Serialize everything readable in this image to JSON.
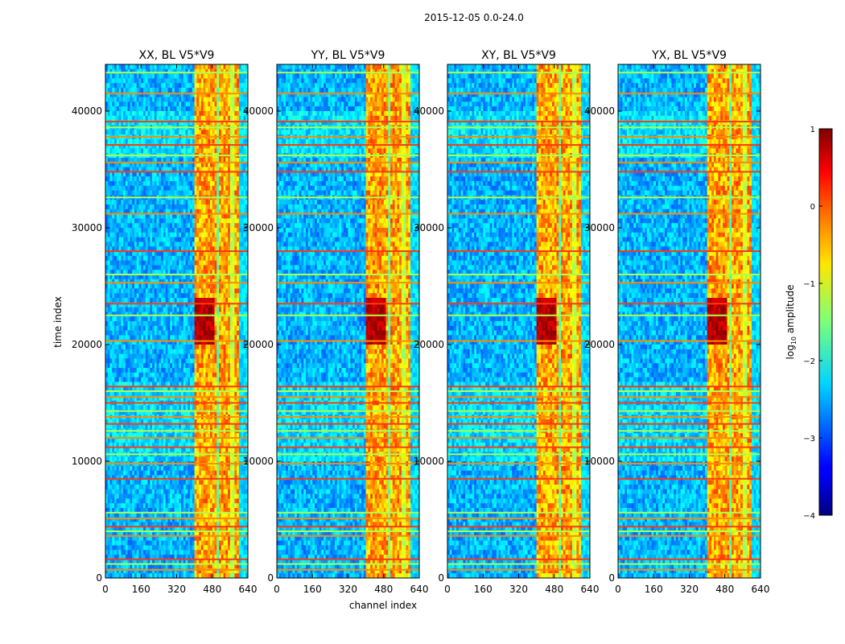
{
  "figure_title": "2015-12-05 0.0-24.0",
  "chart_data": {
    "type": "heatmap",
    "suptitle": "2015-12-05 0.0-24.0",
    "shared_ylabel": "time index",
    "shared_xlabel": "channel index",
    "xlim": [
      0,
      640
    ],
    "ylim": [
      0,
      44000
    ],
    "xticks": [
      0,
      160,
      320,
      480,
      640
    ],
    "yticks": [
      0,
      10000,
      20000,
      30000,
      40000
    ],
    "ytick_labels": [
      "0",
      "10000",
      "20000",
      "30000",
      "40000"
    ],
    "xtick_labels": [
      "0",
      "160",
      "320",
      "480",
      "640"
    ],
    "panels": [
      {
        "title": "XX, BL V5*V9",
        "pol": "XX"
      },
      {
        "title": "YY, BL V5*V9",
        "pol": "YY"
      },
      {
        "title": "XY, BL V5*V9",
        "pol": "XY"
      },
      {
        "title": "YX, BL V5*V9",
        "pol": "YX"
      }
    ],
    "colorbar": {
      "label": "log10 amplitude",
      "label_main": "log",
      "label_sub": "10",
      "label_rest": " amplitude",
      "range": [
        -4,
        1
      ],
      "ticks": [
        1,
        0,
        -1,
        -2,
        -3,
        -4
      ],
      "tick_labels": [
        "1",
        "0",
        "−1",
        "−2",
        "−3",
        "−4"
      ],
      "colormap": "jet"
    },
    "features": {
      "bright_channel_band": [
        400,
        600
      ],
      "horizontal_flag_rows": [
        700,
        1200,
        1600,
        3600,
        4000,
        4400,
        5100,
        5600,
        8500,
        9800,
        10600,
        11200,
        12000,
        12600,
        13200,
        13800,
        14300,
        15000,
        15500,
        16000,
        16400,
        20300,
        22500,
        23500,
        25300,
        26000,
        28000,
        31200,
        32600,
        34800,
        35600,
        36200,
        37100,
        37800,
        38600,
        39100,
        41500,
        43300
      ]
    }
  }
}
